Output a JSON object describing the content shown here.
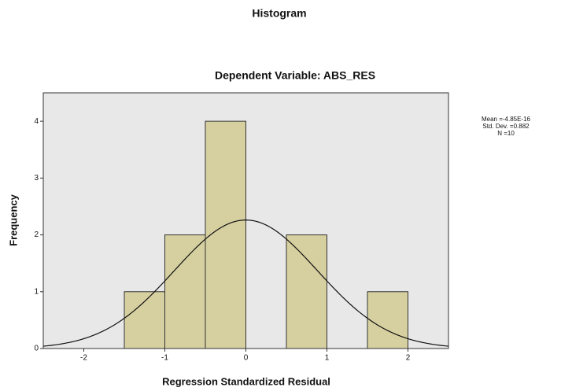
{
  "chart_data": {
    "type": "histogram",
    "title": "Histogram",
    "subtitle": "Dependent Variable: ABS_RES",
    "x_label": "Regression Standardized Residual",
    "y_label": "Frequency",
    "bins": [
      -1.5,
      -1.0,
      -0.5,
      0,
      0.5,
      1.0,
      1.5,
      2.0
    ],
    "values": [
      1,
      2,
      4,
      0,
      2,
      0,
      1
    ],
    "color": "#d6cfa0",
    "xlim": [
      -2.5,
      2.5
    ],
    "xticks": [
      -2,
      -1,
      0,
      1,
      2
    ],
    "ylim": [
      0,
      4.5
    ],
    "yticks": [
      0,
      1,
      2,
      3,
      4
    ],
    "grid": false,
    "normal_curve": {
      "mean": -4.85e-16,
      "std": 0.882,
      "n": 10
    },
    "stats_labels": [
      "Mean =-4.85E-16",
      "Std. Dev. =0.882",
      "N =10"
    ]
  }
}
